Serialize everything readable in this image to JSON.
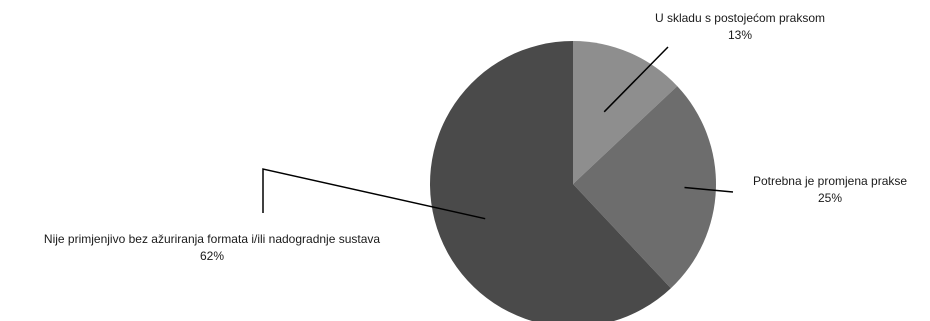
{
  "chart_data": {
    "type": "pie",
    "title": "",
    "legend": "none",
    "start_angle_deg": 0,
    "direction": "clockwise",
    "slices": [
      {
        "label": "U skladu s postojećom praksom",
        "value": 13,
        "display": "13%",
        "color": "#8e8e8e"
      },
      {
        "label": "Potrebna je promjena prakse",
        "value": 25,
        "display": "25%",
        "color": "#6d6d6d"
      },
      {
        "label": "Nije primjenjivo bez ažuriranja formata i/ili nadogradnje sustava",
        "value": 62,
        "display": "62%",
        "color": "#4a4a4a"
      }
    ]
  }
}
